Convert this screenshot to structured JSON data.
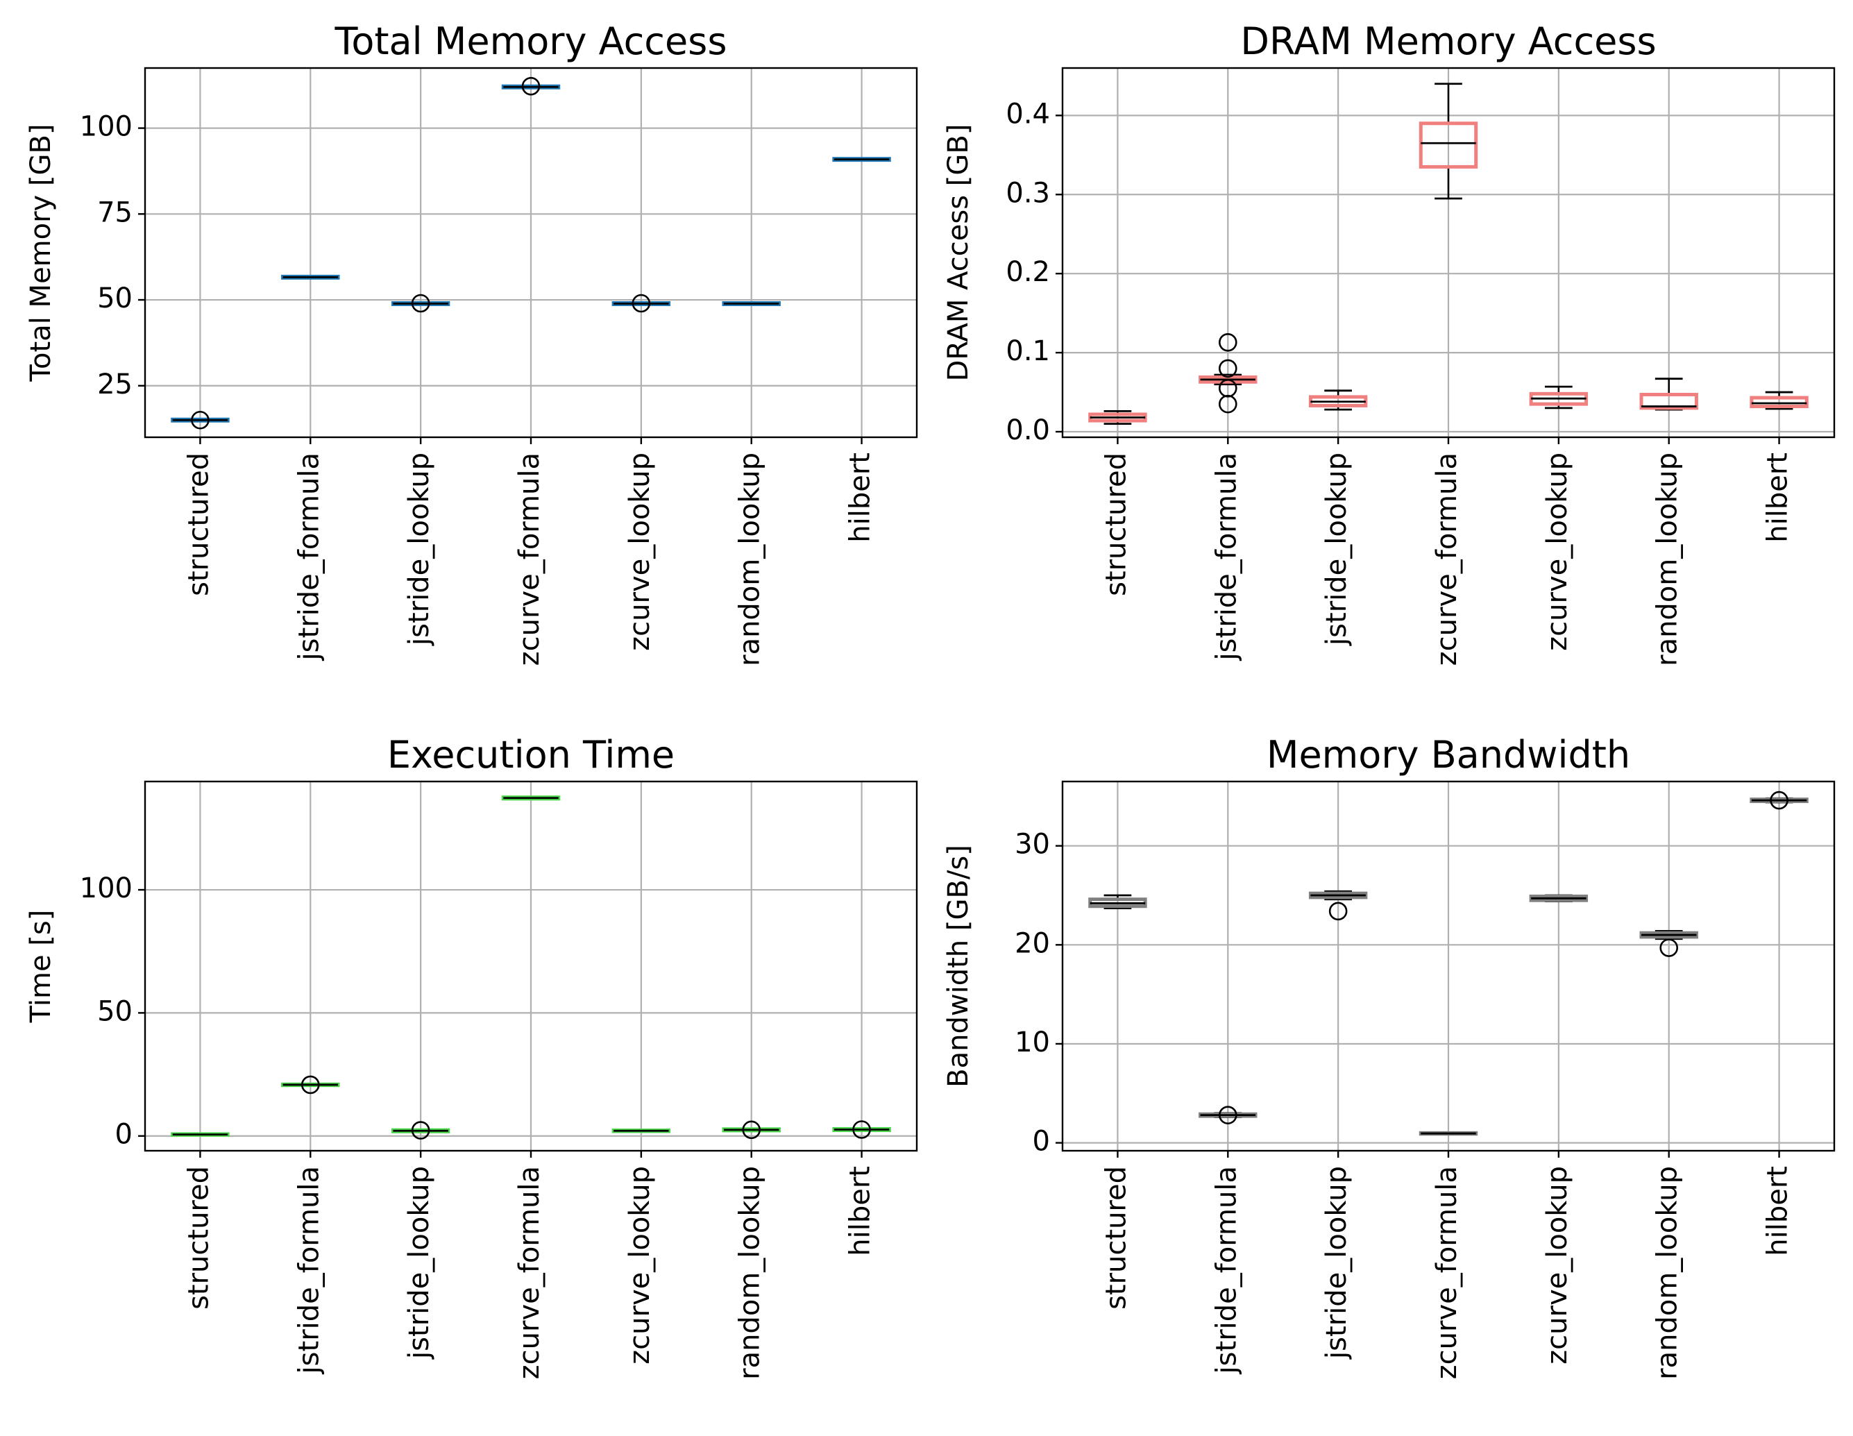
{
  "chart_data": [
    {
      "type": "box",
      "title": "Total Memory Access",
      "xlabel": "",
      "ylabel": "Total Memory [GB]",
      "ylim": [
        10,
        117.5
      ],
      "yticks": [
        25,
        50,
        75,
        100
      ],
      "ytick_labels": [
        "25",
        "50",
        "75",
        "100"
      ],
      "grid": true,
      "color": "#1f77b4",
      "categories": [
        "structured",
        "jstride_formula",
        "jstride_lookup",
        "zcurve_formula",
        "zcurve_lookup",
        "random_lookup",
        "hilbert"
      ],
      "boxes": [
        {
          "q1": 14.8,
          "median": 15.0,
          "q3": 15.2,
          "whislo": 14.7,
          "whishi": 15.3,
          "fliers": [
            15.0
          ]
        },
        {
          "q1": 56.4,
          "median": 56.6,
          "q3": 56.8,
          "whislo": 56.3,
          "whishi": 56.9,
          "fliers": []
        },
        {
          "q1": 48.7,
          "median": 48.9,
          "q3": 49.1,
          "whislo": 48.6,
          "whishi": 49.2,
          "fliers": [
            49.0
          ]
        },
        {
          "q1": 111.8,
          "median": 112.0,
          "q3": 112.2,
          "whislo": 111.7,
          "whishi": 112.3,
          "fliers": [
            112.2
          ]
        },
        {
          "q1": 48.7,
          "median": 48.9,
          "q3": 49.1,
          "whislo": 48.6,
          "whishi": 49.2,
          "fliers": [
            49.0
          ]
        },
        {
          "q1": 48.7,
          "median": 48.9,
          "q3": 49.1,
          "whislo": 48.6,
          "whishi": 49.2,
          "fliers": []
        },
        {
          "q1": 90.7,
          "median": 90.9,
          "q3": 91.1,
          "whislo": 90.6,
          "whishi": 91.2,
          "fliers": []
        }
      ]
    },
    {
      "type": "box",
      "title": "DRAM Memory Access",
      "xlabel": "",
      "ylabel": "DRAM Access [GB]",
      "ylim": [
        -0.007,
        0.46
      ],
      "yticks": [
        0.0,
        0.1,
        0.2,
        0.3,
        0.4
      ],
      "ytick_labels": [
        "0.0",
        "0.1",
        "0.2",
        "0.3",
        "0.4"
      ],
      "grid": true,
      "color": "#f08080",
      "categories": [
        "structured",
        "jstride_formula",
        "jstride_lookup",
        "zcurve_formula",
        "zcurve_lookup",
        "random_lookup",
        "hilbert"
      ],
      "boxes": [
        {
          "q1": 0.014,
          "median": 0.018,
          "q3": 0.022,
          "whislo": 0.01,
          "whishi": 0.026,
          "fliers": []
        },
        {
          "q1": 0.063,
          "median": 0.066,
          "q3": 0.069,
          "whislo": 0.06,
          "whishi": 0.072,
          "fliers": [
            0.035,
            0.055,
            0.08,
            0.113
          ]
        },
        {
          "q1": 0.033,
          "median": 0.038,
          "q3": 0.044,
          "whislo": 0.028,
          "whishi": 0.052,
          "fliers": []
        },
        {
          "q1": 0.335,
          "median": 0.365,
          "q3": 0.39,
          "whislo": 0.295,
          "whishi": 0.44,
          "fliers": []
        },
        {
          "q1": 0.035,
          "median": 0.042,
          "q3": 0.048,
          "whislo": 0.03,
          "whishi": 0.057,
          "fliers": []
        },
        {
          "q1": 0.03,
          "median": 0.032,
          "q3": 0.047,
          "whislo": 0.028,
          "whishi": 0.067,
          "fliers": []
        },
        {
          "q1": 0.032,
          "median": 0.036,
          "q3": 0.043,
          "whislo": 0.029,
          "whishi": 0.05,
          "fliers": []
        }
      ]
    },
    {
      "type": "box",
      "title": "Execution Time",
      "xlabel": "",
      "ylabel": "Time [s]",
      "ylim": [
        -6,
        144
      ],
      "yticks": [
        0,
        50,
        100
      ],
      "ytick_labels": [
        "0",
        "50",
        "100"
      ],
      "grid": true,
      "color": "#4cd64c",
      "categories": [
        "structured",
        "jstride_formula",
        "jstride_lookup",
        "zcurve_formula",
        "zcurve_lookup",
        "random_lookup",
        "hilbert"
      ],
      "boxes": [
        {
          "q1": 0.4,
          "median": 0.6,
          "q3": 0.8,
          "whislo": 0.3,
          "whishi": 0.9,
          "fliers": []
        },
        {
          "q1": 20.6,
          "median": 20.8,
          "q3": 21.0,
          "whislo": 20.5,
          "whishi": 21.1,
          "fliers": [
            20.8
          ]
        },
        {
          "q1": 1.8,
          "median": 2.1,
          "q3": 2.4,
          "whislo": 1.7,
          "whishi": 2.5,
          "fliers": [
            2.3
          ]
        },
        {
          "q1": 137.0,
          "median": 137.3,
          "q3": 137.6,
          "whislo": 136.9,
          "whishi": 137.7,
          "fliers": []
        },
        {
          "q1": 1.9,
          "median": 2.1,
          "q3": 2.3,
          "whislo": 1.8,
          "whishi": 2.4,
          "fliers": []
        },
        {
          "q1": 2.2,
          "median": 2.5,
          "q3": 2.8,
          "whislo": 2.1,
          "whishi": 2.9,
          "fliers": [
            2.5
          ]
        },
        {
          "q1": 2.3,
          "median": 2.6,
          "q3": 2.9,
          "whislo": 2.2,
          "whishi": 3.0,
          "fliers": [
            2.6
          ]
        }
      ]
    },
    {
      "type": "box",
      "title": "Memory Bandwidth",
      "xlabel": "",
      "ylabel": "Bandwidth [GB/s]",
      "ylim": [
        -0.8,
        36.5
      ],
      "yticks": [
        0,
        10,
        20,
        30
      ],
      "ytick_labels": [
        "0",
        "10",
        "20",
        "30"
      ],
      "grid": true,
      "color": "#808080",
      "categories": [
        "structured",
        "jstride_formula",
        "jstride_lookup",
        "zcurve_formula",
        "zcurve_lookup",
        "random_lookup",
        "hilbert"
      ],
      "boxes": [
        {
          "q1": 23.9,
          "median": 24.2,
          "q3": 24.6,
          "whislo": 23.7,
          "whishi": 25.0,
          "fliers": []
        },
        {
          "q1": 2.7,
          "median": 2.8,
          "q3": 2.9,
          "whislo": 2.6,
          "whishi": 3.0,
          "fliers": [
            2.8
          ]
        },
        {
          "q1": 24.8,
          "median": 25.0,
          "q3": 25.2,
          "whislo": 24.6,
          "whishi": 25.4,
          "fliers": [
            23.4
          ]
        },
        {
          "q1": 0.9,
          "median": 0.95,
          "q3": 1.0,
          "whislo": 0.85,
          "whishi": 1.05,
          "fliers": []
        },
        {
          "q1": 24.5,
          "median": 24.7,
          "q3": 24.9,
          "whislo": 24.4,
          "whishi": 25.0,
          "fliers": []
        },
        {
          "q1": 20.8,
          "median": 21.0,
          "q3": 21.2,
          "whislo": 20.6,
          "whishi": 21.4,
          "fliers": [
            19.7
          ]
        },
        {
          "q1": 34.5,
          "median": 34.6,
          "q3": 34.7,
          "whislo": 34.4,
          "whishi": 34.8,
          "fliers": [
            34.6
          ]
        }
      ]
    }
  ]
}
